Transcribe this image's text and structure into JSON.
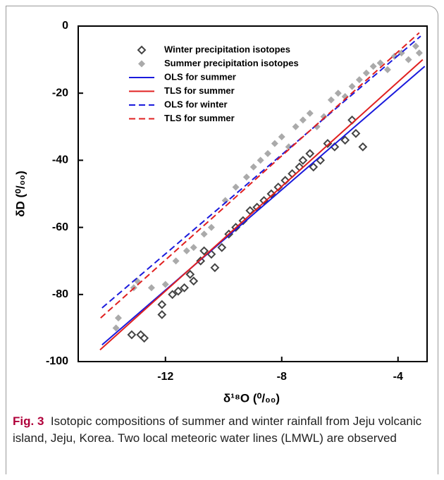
{
  "chart_data": {
    "type": "scatter",
    "xlabel": "δ¹⁸O (⁰/₀₀)",
    "ylabel": "δD (⁰/₀₀)",
    "xlim": [
      -15,
      -3
    ],
    "xticks": [
      -12,
      -8,
      -4
    ],
    "ylim": [
      -100,
      0
    ],
    "yticks": [
      -100,
      -80,
      -60,
      -40,
      -20,
      0
    ],
    "legend": "upper left",
    "series": [
      {
        "name": "Winter precipitation isotopes",
        "color": "#444444",
        "marker": "diamond-open",
        "x": [
          -13.16,
          -12.85,
          -12.73,
          -12.12,
          -12.12,
          -11.76,
          -11.56,
          -11.35,
          -11.15,
          -11.03,
          -10.79,
          -10.67,
          -10.42,
          -10.3,
          -10.06,
          -9.82,
          -9.58,
          -9.33,
          -9.09,
          -8.85,
          -8.61,
          -8.36,
          -8.12,
          -7.88,
          -7.64,
          -7.39,
          -7.27,
          -7.03,
          -6.91,
          -6.67,
          -6.42,
          -6.18,
          -5.82,
          -5.58,
          -5.45,
          -5.21
        ],
        "y": [
          -92,
          -92,
          -93,
          -83,
          -86,
          -80,
          -79,
          -78,
          -74,
          -76,
          -70,
          -67,
          -68,
          -72,
          -66,
          -62,
          -60,
          -58,
          -55,
          -54,
          -52,
          -50,
          -48,
          -46,
          -44,
          -42,
          -40,
          -38,
          -42,
          -40,
          -35,
          -36,
          -34,
          -28,
          -32,
          -36
        ]
      },
      {
        "name": "Summer precipitation isotopes",
        "color": "#aaaaaa",
        "marker": "diamond-filled",
        "x": [
          -13.7,
          -13.62,
          -13.09,
          -12.97,
          -12.48,
          -12,
          -11.64,
          -11.27,
          -11.03,
          -10.67,
          -10.42,
          -9.94,
          -9.58,
          -9.21,
          -8.97,
          -8.73,
          -8.48,
          -8.24,
          -8,
          -7.76,
          -7.52,
          -7.27,
          -7.03,
          -6.79,
          -6.55,
          -6.3,
          -6.06,
          -5.82,
          -5.58,
          -5.33,
          -5.09,
          -4.85,
          -4.61,
          -4.36,
          -4.12,
          -3.88,
          -3.64,
          -3.39,
          -3.27
        ],
        "y": [
          -90,
          -87,
          -78,
          -76,
          -78,
          -77,
          -70,
          -67,
          -66,
          -62,
          -60,
          -52,
          -48,
          -45,
          -42,
          -40,
          -38,
          -35,
          -33,
          -36,
          -30,
          -28,
          -26,
          -30,
          -27,
          -22,
          -20,
          -21,
          -18,
          -16,
          -14,
          -12,
          -11,
          -13,
          -9,
          -8,
          -10,
          -6,
          -8
        ]
      },
      {
        "name": "OLS for summer",
        "color": "#1a1adc",
        "line": "solid",
        "x": [
          -14.18,
          -3.08
        ],
        "y": [
          -95,
          -12
        ]
      },
      {
        "name": "TLS for summer",
        "color": "#e02020",
        "line": "solid",
        "x": [
          -14.25,
          -3.15
        ],
        "y": [
          -96.5,
          -10
        ]
      },
      {
        "name": "OLS for winter",
        "color": "#1a1adc",
        "line": "dashed",
        "x": [
          -14.18,
          -3.22
        ],
        "y": [
          -84,
          -3
        ]
      },
      {
        "name": "TLS for summer",
        "color": "#e02020",
        "line": "dashed",
        "x": [
          -14.23,
          -3.27
        ],
        "y": [
          -87,
          -2
        ]
      }
    ]
  },
  "caption": {
    "label": "Fig. 3",
    "text": "Isotopic compositions of summer and winter rainfall from Jeju volcanic island, Jeju, Korea. Two local meteoric water lines (LMWL) are observed"
  }
}
